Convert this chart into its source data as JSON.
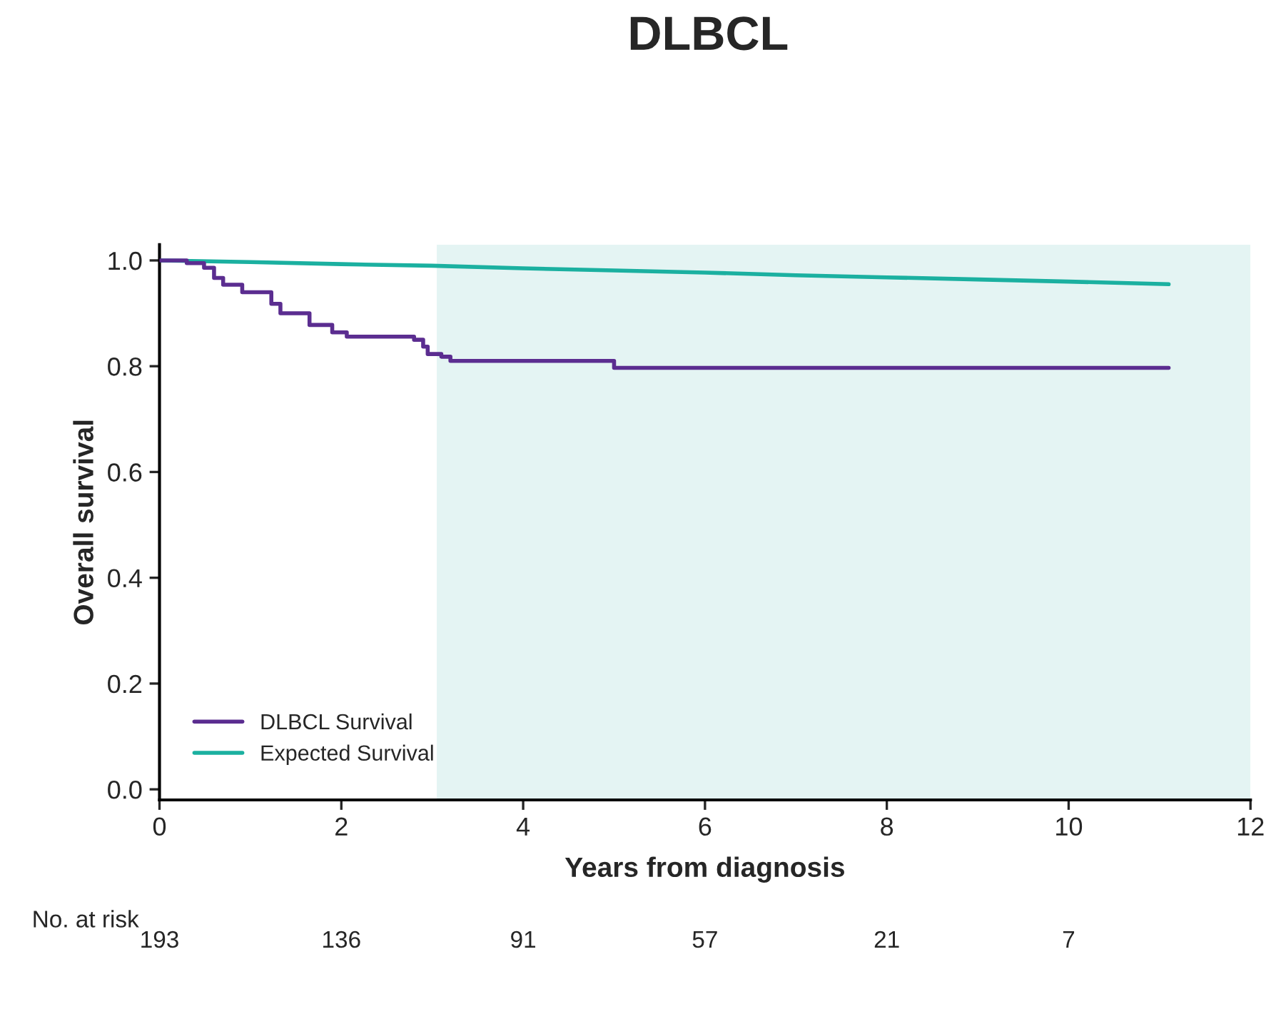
{
  "chart_data": {
    "type": "step",
    "title": "DLBCL",
    "xlabel": "Years from diagnosis",
    "ylabel": "Overall survival",
    "series": [
      {
        "name": "DLBCL Survival",
        "color": "#5b2d90",
        "x": [
          0,
          0.3,
          0.49,
          0.6,
          0.7,
          0.91,
          1.23,
          1.33,
          1.65,
          1.9,
          2.06,
          2.8,
          2.9,
          2.95,
          3.1,
          3.2,
          5.0,
          11.1
        ],
        "values": [
          1.0,
          0.995,
          0.986,
          0.967,
          0.954,
          0.94,
          0.918,
          0.9,
          0.878,
          0.864,
          0.856,
          0.85,
          0.837,
          0.823,
          0.818,
          0.81,
          0.797,
          0.797
        ]
      },
      {
        "name": "Expected Survival",
        "color": "#1bb0a0",
        "type": "line",
        "x": [
          0,
          1,
          2,
          3,
          4,
          5,
          6,
          7,
          8,
          9,
          10,
          11.1
        ],
        "values": [
          1.0,
          0.997,
          0.993,
          0.99,
          0.985,
          0.981,
          0.977,
          0.972,
          0.968,
          0.964,
          0.96,
          0.955
        ]
      }
    ],
    "xlim": [
      0,
      12
    ],
    "xticks": [
      0,
      2,
      4,
      6,
      8,
      10,
      12
    ],
    "ylim": [
      -0.02,
      1.03
    ],
    "yticks": [
      {
        "value": 0,
        "label": "0.0"
      },
      0.2,
      0.4,
      0.6,
      0.8,
      {
        "value": 1,
        "label": "1.0"
      }
    ],
    "bands": [
      {
        "axis": "x",
        "from": 3.05,
        "to": 12,
        "color": "#e4f4f3"
      }
    ],
    "legend": "bottom left",
    "grid": false,
    "annotations": [
      "No. at risk",
      "193",
      "136",
      "91",
      "57",
      "21",
      "7"
    ]
  }
}
